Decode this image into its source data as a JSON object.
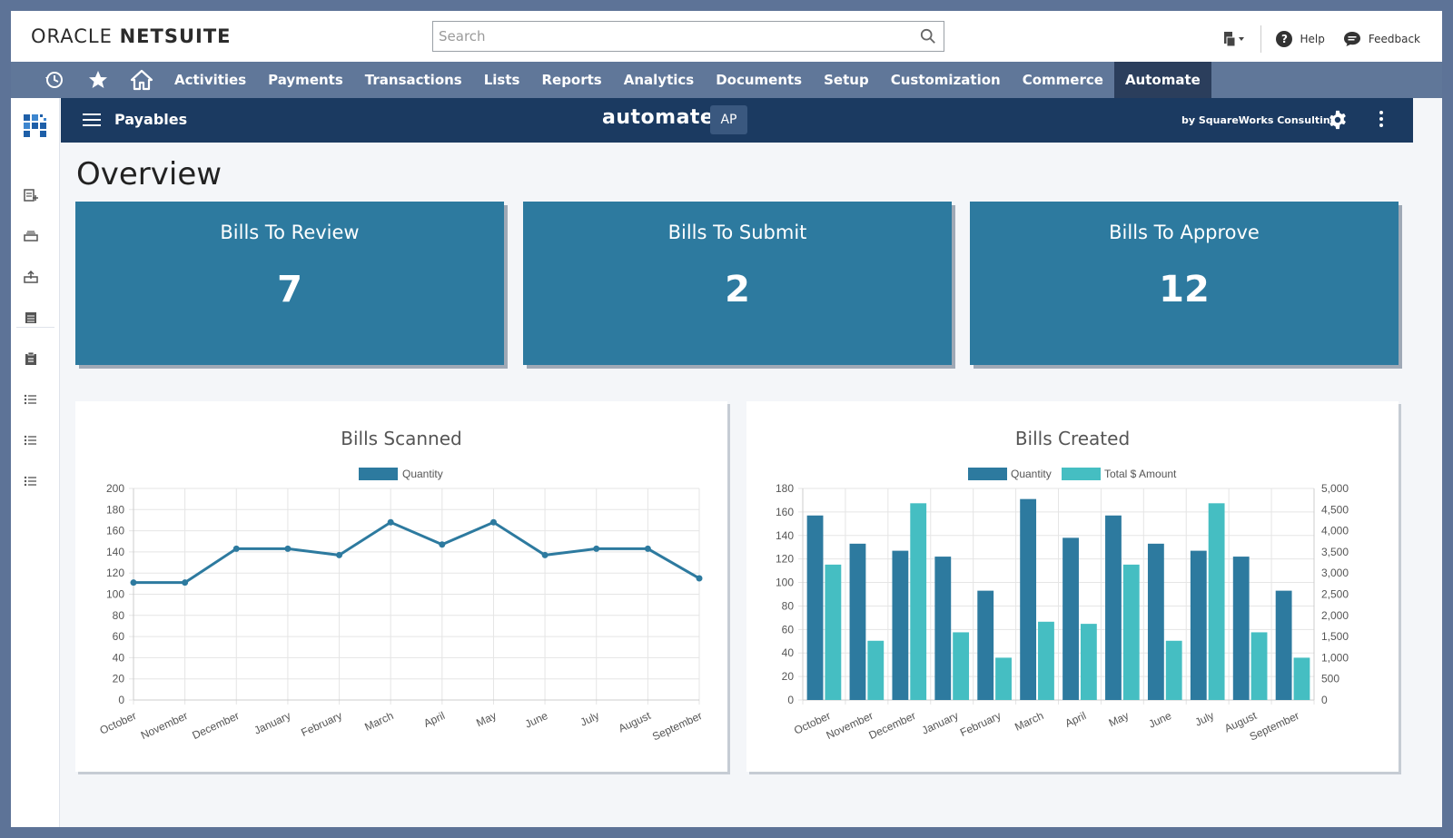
{
  "header": {
    "logo_main": "ORACLE",
    "logo_sub": "NETSUITE",
    "search_placeholder": "Search",
    "help_label": "Help",
    "feedback_label": "Feedback"
  },
  "nav": {
    "items": [
      "Activities",
      "Payments",
      "Transactions",
      "Lists",
      "Reports",
      "Analytics",
      "Documents",
      "Setup",
      "Customization",
      "Commerce",
      "Automate"
    ],
    "active": "Automate"
  },
  "appbar": {
    "page_title": "Payables",
    "brand": "automate",
    "badge": "AP",
    "vendor": "by SquareWorks Consulting"
  },
  "page": {
    "title": "Overview"
  },
  "cards": [
    {
      "title": "Bills To Review",
      "value": "7"
    },
    {
      "title": "Bills To Submit",
      "value": "2"
    },
    {
      "title": "Bills To Approve",
      "value": "12"
    }
  ],
  "colors": {
    "primary": "#2d7a9f",
    "secondary": "#45bec2",
    "appbar": "#1b3a61",
    "nav": "#607799"
  },
  "chart_data": [
    {
      "type": "line",
      "title": "Bills Scanned",
      "categories": [
        "October",
        "November",
        "December",
        "January",
        "February",
        "March",
        "April",
        "May",
        "June",
        "July",
        "August",
        "September"
      ],
      "series": [
        {
          "name": "Quantity",
          "values": [
            111,
            111,
            143,
            143,
            137,
            168,
            147,
            168,
            137,
            143,
            143,
            115
          ]
        }
      ],
      "ylim": [
        0,
        200
      ],
      "yticks": [
        0,
        20,
        40,
        60,
        80,
        100,
        120,
        140,
        160,
        180,
        200
      ],
      "grid": true,
      "legend": "top-center"
    },
    {
      "type": "bar",
      "title": "Bills Created",
      "categories": [
        "October",
        "November",
        "December",
        "January",
        "February",
        "March",
        "April",
        "May",
        "June",
        "July",
        "August",
        "September"
      ],
      "series": [
        {
          "name": "Quantity",
          "axis": "left",
          "values": [
            157,
            133,
            127,
            122,
            93,
            171,
            138,
            157,
            133,
            127,
            122,
            93
          ]
        },
        {
          "name": "Total $ Amount",
          "axis": "right",
          "values": [
            3200,
            1400,
            4650,
            1600,
            1000,
            1850,
            1800,
            3200,
            1400,
            4650,
            1600,
            1000
          ]
        }
      ],
      "ylim": [
        0,
        180
      ],
      "yticks": [
        0,
        20,
        40,
        60,
        80,
        100,
        120,
        140,
        160,
        180
      ],
      "y2lim": [
        0,
        5000
      ],
      "y2ticks": [
        "0",
        "500",
        "1,000",
        "1,500",
        "2,000",
        "2,500",
        "3,000",
        "3,500",
        "4,000",
        "4,500",
        "5,000"
      ],
      "grid": true,
      "legend": "top-center"
    }
  ]
}
